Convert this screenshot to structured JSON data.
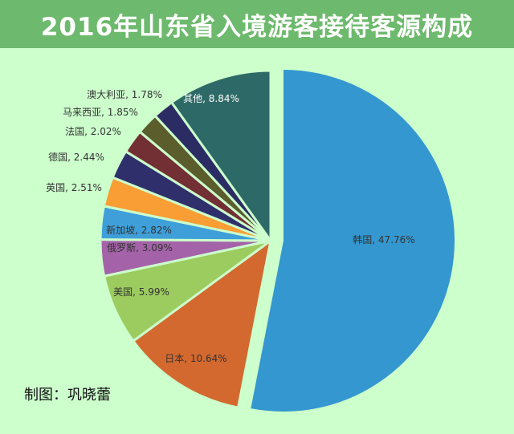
{
  "header": {
    "title": "2016年山东省入境游客接待客源构成"
  },
  "footer": {
    "credit": "制图：巩晓蕾"
  },
  "chart_data": {
    "type": "pie",
    "title": "2016年山东省入境游客接待客源构成",
    "unit": "%",
    "exploded": [
      "韩国"
    ],
    "slices": [
      {
        "label": "韩国",
        "value": 47.76,
        "display": "韩国, 47.76%",
        "color": "#3497cf"
      },
      {
        "label": "日本",
        "value": 10.64,
        "display": "日本, 10.64%",
        "color": "#d4692f"
      },
      {
        "label": "美国",
        "value": 5.99,
        "display": "美国, 5.99%",
        "color": "#9ccb5f"
      },
      {
        "label": "俄罗斯",
        "value": 3.09,
        "display": "俄罗斯, 3.09%",
        "color": "#a463a8"
      },
      {
        "label": "新加坡",
        "value": 2.82,
        "display": "新加坡, 2.82%",
        "color": "#3f9fd9"
      },
      {
        "label": "英国",
        "value": 2.51,
        "display": "英国, 2.51%",
        "color": "#f99d35"
      },
      {
        "label": "德国",
        "value": 2.44,
        "display": "德国, 2.44%",
        "color": "#2f2f6c"
      },
      {
        "label": "法国",
        "value": 2.02,
        "display": "法国, 2.02%",
        "color": "#723034"
      },
      {
        "label": "马来西亚",
        "value": 1.85,
        "display": "马来西亚, 1.85%",
        "color": "#5b5d2c"
      },
      {
        "label": "澳大利亚",
        "value": 1.78,
        "display": "澳大利亚, 1.78%",
        "color": "#2c2c64"
      },
      {
        "label": "其他",
        "value": 8.84,
        "display": "其他, 8.84%",
        "color": "#2d6966"
      }
    ]
  }
}
